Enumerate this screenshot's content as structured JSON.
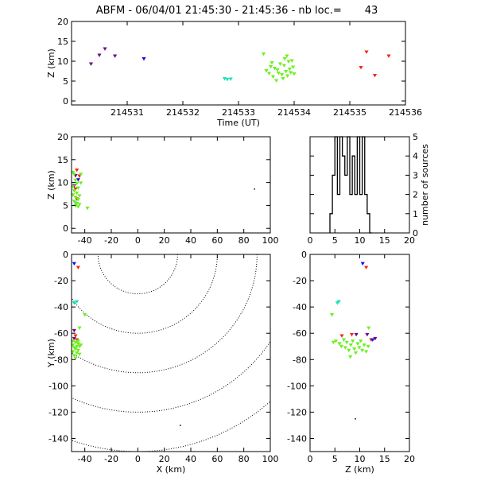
{
  "title": "ABFM - 06/04/01 21:45:30 - 21:45:36 - nb loc.=       43",
  "colors": {
    "purple": "#6e0a8a",
    "blue": "#1010ee",
    "cyan": "#19e3b6",
    "green": "#6cf01f",
    "red": "#ef2a10",
    "black": "#000000"
  },
  "chart_data": [
    {
      "type": "scatter",
      "name": "time-height",
      "xlabel": "Time (UT)",
      "ylabel": "Z (km)",
      "xlim": [
        214530.0,
        214536.0
      ],
      "ylim": [
        -1,
        20
      ],
      "xticks": [
        "214531",
        "214532",
        "214533",
        "214534",
        "214535",
        "214536"
      ],
      "yticks": [
        "0",
        "5",
        "10",
        "15",
        "20"
      ],
      "points": [
        {
          "x": 214530.35,
          "y": 9.3,
          "c": "purple"
        },
        {
          "x": 214530.5,
          "y": 11.5,
          "c": "purple"
        },
        {
          "x": 214530.6,
          "y": 13.1,
          "c": "purple"
        },
        {
          "x": 214530.78,
          "y": 11.3,
          "c": "purple"
        },
        {
          "x": 214531.3,
          "y": 10.6,
          "c": "blue"
        },
        {
          "x": 214532.75,
          "y": 5.6,
          "c": "cyan"
        },
        {
          "x": 214532.8,
          "y": 5.4,
          "c": "cyan"
        },
        {
          "x": 214532.86,
          "y": 5.5,
          "c": "cyan"
        },
        {
          "x": 214533.45,
          "y": 11.8,
          "c": "green"
        },
        {
          "x": 214533.5,
          "y": 7.6,
          "c": "green"
        },
        {
          "x": 214533.55,
          "y": 6.9,
          "c": "green"
        },
        {
          "x": 214533.6,
          "y": 9.6,
          "c": "green"
        },
        {
          "x": 214533.62,
          "y": 6.1,
          "c": "green"
        },
        {
          "x": 214533.65,
          "y": 8.2,
          "c": "green"
        },
        {
          "x": 214533.68,
          "y": 5.1,
          "c": "green"
        },
        {
          "x": 214533.72,
          "y": 7.0,
          "c": "green"
        },
        {
          "x": 214533.75,
          "y": 9.3,
          "c": "green"
        },
        {
          "x": 214533.78,
          "y": 6.6,
          "c": "green"
        },
        {
          "x": 214533.8,
          "y": 5.6,
          "c": "green"
        },
        {
          "x": 214533.82,
          "y": 8.9,
          "c": "green"
        },
        {
          "x": 214533.83,
          "y": 10.6,
          "c": "green"
        },
        {
          "x": 214533.85,
          "y": 7.4,
          "c": "green"
        },
        {
          "x": 214533.87,
          "y": 11.3,
          "c": "green"
        },
        {
          "x": 214533.88,
          "y": 6.3,
          "c": "green"
        },
        {
          "x": 214533.9,
          "y": 9.9,
          "c": "green"
        },
        {
          "x": 214533.92,
          "y": 8.0,
          "c": "green"
        },
        {
          "x": 214533.94,
          "y": 7.1,
          "c": "green"
        },
        {
          "x": 214533.96,
          "y": 10.1,
          "c": "green"
        },
        {
          "x": 214533.98,
          "y": 8.5,
          "c": "green"
        },
        {
          "x": 214534.0,
          "y": 6.8,
          "c": "green"
        },
        {
          "x": 214533.7,
          "y": 7.8,
          "c": "green"
        },
        {
          "x": 214533.58,
          "y": 8.6,
          "c": "green"
        },
        {
          "x": 214535.3,
          "y": 12.3,
          "c": "red"
        },
        {
          "x": 214535.2,
          "y": 8.4,
          "c": "red"
        },
        {
          "x": 214535.45,
          "y": 6.4,
          "c": "red"
        },
        {
          "x": 214535.7,
          "y": 11.3,
          "c": "red"
        }
      ]
    },
    {
      "type": "scatter",
      "name": "x-height",
      "xlabel": "",
      "ylabel": "Z (km)",
      "xlim": [
        -50,
        100
      ],
      "ylim": [
        -1,
        20
      ],
      "xticks": [
        "-40",
        "-20",
        "0",
        "20",
        "40",
        "60",
        "80",
        "100"
      ],
      "yticks": [
        "0",
        "5",
        "10",
        "15",
        "20"
      ],
      "points": [
        {
          "x": -46,
          "y": 12.7,
          "c": "red"
        },
        {
          "x": -47,
          "y": 8.6,
          "c": "red"
        },
        {
          "x": -46,
          "y": 6.4,
          "c": "red"
        },
        {
          "x": -44,
          "y": 11.4,
          "c": "red"
        },
        {
          "x": -48,
          "y": 9.3,
          "c": "purple"
        },
        {
          "x": -47,
          "y": 11.5,
          "c": "purple"
        },
        {
          "x": -45,
          "y": 10.6,
          "c": "blue"
        },
        {
          "x": -47,
          "y": 5.5,
          "c": "cyan"
        },
        {
          "x": -48,
          "y": 11.8,
          "c": "green"
        },
        {
          "x": -47,
          "y": 10.5,
          "c": "green"
        },
        {
          "x": -46,
          "y": 9.8,
          "c": "green"
        },
        {
          "x": -49,
          "y": 9.1,
          "c": "green"
        },
        {
          "x": -45,
          "y": 8.8,
          "c": "green"
        },
        {
          "x": -48,
          "y": 8.2,
          "c": "green"
        },
        {
          "x": -46,
          "y": 7.7,
          "c": "green"
        },
        {
          "x": -49,
          "y": 7.3,
          "c": "green"
        },
        {
          "x": -44,
          "y": 7.1,
          "c": "green"
        },
        {
          "x": -47,
          "y": 6.8,
          "c": "green"
        },
        {
          "x": -45,
          "y": 6.3,
          "c": "green"
        },
        {
          "x": -48,
          "y": 5.9,
          "c": "green"
        },
        {
          "x": -46,
          "y": 5.4,
          "c": "green"
        },
        {
          "x": -44,
          "y": 5.2,
          "c": "green"
        },
        {
          "x": -47,
          "y": 4.9,
          "c": "green"
        },
        {
          "x": -45,
          "y": 4.7,
          "c": "green"
        },
        {
          "x": -43,
          "y": 9.9,
          "c": "green"
        },
        {
          "x": -43,
          "y": 11.8,
          "c": "green"
        },
        {
          "x": -38,
          "y": 4.4,
          "c": "green"
        },
        {
          "x": -49,
          "y": 12.2,
          "c": "green"
        },
        {
          "x": 88,
          "y": 8.6,
          "c": "black"
        }
      ]
    },
    {
      "type": "bar",
      "name": "height-histogram",
      "xlabel": "",
      "ylabel": "number of sources",
      "xlim": [
        0,
        20
      ],
      "ylim": [
        0,
        5
      ],
      "xticks": [
        "0",
        "5",
        "10",
        "15",
        "20"
      ],
      "yticks": [
        "0",
        "1",
        "2",
        "3",
        "4",
        "5"
      ],
      "bin_edges": [
        4.0,
        4.5,
        5.0,
        5.5,
        6.0,
        6.5,
        7.0,
        7.5,
        8.0,
        8.5,
        9.0,
        9.5,
        10.0,
        10.5,
        11.0,
        11.5,
        12.0,
        12.5
      ],
      "values": [
        1,
        3,
        5,
        2,
        5,
        4,
        3,
        5,
        2,
        4,
        2,
        5,
        2,
        5,
        2,
        1,
        0
      ]
    },
    {
      "type": "scatter",
      "name": "plan-view",
      "xlabel": "X (km)",
      "ylabel": "Y (km)",
      "xlim": [
        -50,
        100
      ],
      "ylim": [
        -150,
        0
      ],
      "xticks": [
        "-40",
        "-20",
        "0",
        "20",
        "40",
        "60",
        "80",
        "100"
      ],
      "yticks": [
        "0",
        "-20",
        "-40",
        "-60",
        "-80",
        "-100",
        "-120",
        "-140"
      ],
      "range_rings_km": [
        30,
        60,
        90,
        120,
        150
      ],
      "points": [
        {
          "x": -48,
          "y": -7,
          "c": "blue"
        },
        {
          "x": -45,
          "y": -10,
          "c": "red"
        },
        {
          "x": -46,
          "y": -36,
          "c": "cyan"
        },
        {
          "x": -48,
          "y": -37,
          "c": "cyan"
        },
        {
          "x": -40,
          "y": -46,
          "c": "green"
        },
        {
          "x": -44,
          "y": -56,
          "c": "green"
        },
        {
          "x": -48,
          "y": -58,
          "c": "purple"
        },
        {
          "x": -47,
          "y": -62,
          "c": "red"
        },
        {
          "x": -48,
          "y": -64,
          "c": "purple"
        },
        {
          "x": -46,
          "y": -65,
          "c": "red"
        },
        {
          "x": -49,
          "y": -66,
          "c": "green"
        },
        {
          "x": -47,
          "y": -67,
          "c": "green"
        },
        {
          "x": -45,
          "y": -68,
          "c": "green"
        },
        {
          "x": -49,
          "y": -69,
          "c": "green"
        },
        {
          "x": -46,
          "y": -70,
          "c": "green"
        },
        {
          "x": -44,
          "y": -70,
          "c": "green"
        },
        {
          "x": -48,
          "y": -71,
          "c": "green"
        },
        {
          "x": -47,
          "y": -72,
          "c": "green"
        },
        {
          "x": -45,
          "y": -73,
          "c": "green"
        },
        {
          "x": -49,
          "y": -74,
          "c": "green"
        },
        {
          "x": -46,
          "y": -75,
          "c": "green"
        },
        {
          "x": -44,
          "y": -76,
          "c": "green"
        },
        {
          "x": -48,
          "y": -77,
          "c": "green"
        },
        {
          "x": -45,
          "y": -66,
          "c": "green"
        },
        {
          "x": -43,
          "y": -69,
          "c": "green"
        },
        {
          "x": -47,
          "y": -79,
          "c": "green"
        },
        {
          "x": 32,
          "y": -130,
          "c": "black"
        }
      ]
    },
    {
      "type": "scatter",
      "name": "z-y",
      "xlabel": "Z (km)",
      "ylabel": "",
      "xlim": [
        0,
        20
      ],
      "ylim": [
        -150,
        0
      ],
      "xticks": [
        "0",
        "5",
        "10",
        "15",
        "20"
      ],
      "yticks": [
        "0",
        "-20",
        "-40",
        "-60",
        "-80",
        "-100",
        "-120",
        "-140"
      ],
      "points": [
        {
          "x": 10.6,
          "y": -7,
          "c": "blue"
        },
        {
          "x": 11.3,
          "y": -10,
          "c": "red"
        },
        {
          "x": 5.8,
          "y": -36,
          "c": "cyan"
        },
        {
          "x": 5.5,
          "y": -37,
          "c": "cyan"
        },
        {
          "x": 4.4,
          "y": -46,
          "c": "green"
        },
        {
          "x": 6.4,
          "y": -62,
          "c": "red"
        },
        {
          "x": 8.4,
          "y": -61,
          "c": "red"
        },
        {
          "x": 9.3,
          "y": -61,
          "c": "purple"
        },
        {
          "x": 11.8,
          "y": -56,
          "c": "green"
        },
        {
          "x": 11.5,
          "y": -61,
          "c": "purple"
        },
        {
          "x": 12.3,
          "y": -65,
          "c": "red"
        },
        {
          "x": 13.1,
          "y": -64,
          "c": "purple"
        },
        {
          "x": 12.6,
          "y": -65,
          "c": "blue"
        },
        {
          "x": 4.7,
          "y": -67,
          "c": "green"
        },
        {
          "x": 5.2,
          "y": -66,
          "c": "green"
        },
        {
          "x": 5.9,
          "y": -68,
          "c": "green"
        },
        {
          "x": 6.3,
          "y": -70,
          "c": "green"
        },
        {
          "x": 6.8,
          "y": -65,
          "c": "green"
        },
        {
          "x": 7.1,
          "y": -71,
          "c": "green"
        },
        {
          "x": 7.4,
          "y": -67,
          "c": "green"
        },
        {
          "x": 7.8,
          "y": -73,
          "c": "green"
        },
        {
          "x": 8.2,
          "y": -69,
          "c": "green"
        },
        {
          "x": 8.6,
          "y": -66,
          "c": "green"
        },
        {
          "x": 8.9,
          "y": -72,
          "c": "green"
        },
        {
          "x": 9.2,
          "y": -75,
          "c": "green"
        },
        {
          "x": 9.6,
          "y": -68,
          "c": "green"
        },
        {
          "x": 9.9,
          "y": -71,
          "c": "green"
        },
        {
          "x": 10.2,
          "y": -66,
          "c": "green"
        },
        {
          "x": 10.5,
          "y": -73,
          "c": "green"
        },
        {
          "x": 10.9,
          "y": -69,
          "c": "green"
        },
        {
          "x": 11.3,
          "y": -74,
          "c": "green"
        },
        {
          "x": 11.7,
          "y": -70,
          "c": "green"
        },
        {
          "x": 8.1,
          "y": -78,
          "c": "green"
        },
        {
          "x": 9.1,
          "y": -125,
          "c": "black"
        }
      ]
    }
  ]
}
